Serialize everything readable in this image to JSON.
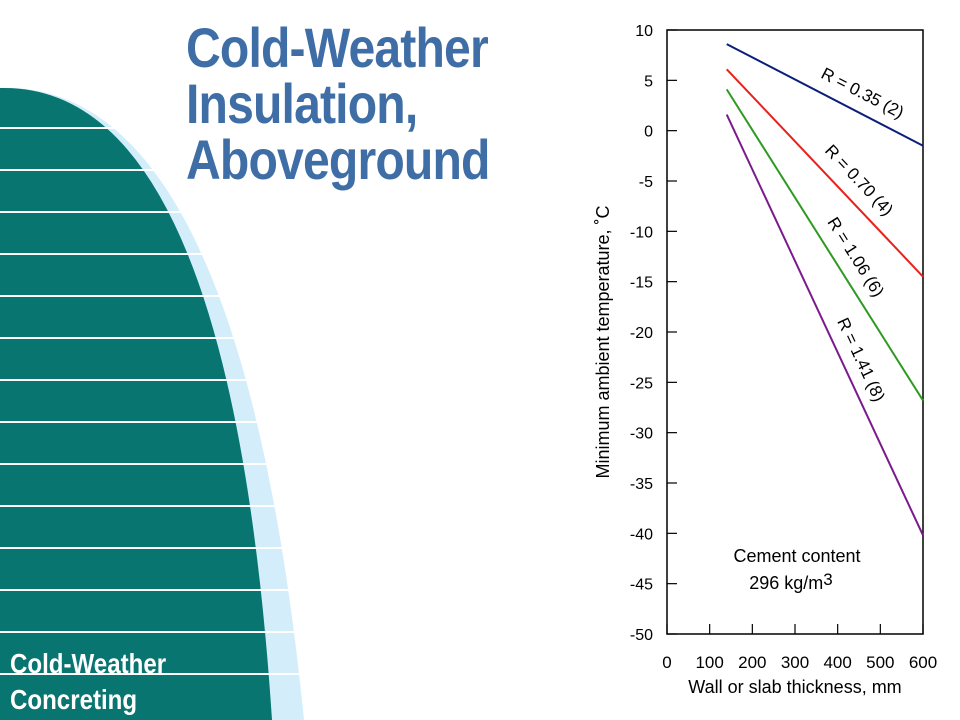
{
  "slide": {
    "title_lines": [
      "Cold-Weather",
      "Insulation,",
      "Aboveground"
    ],
    "footer_lines": [
      "Cold-Weather",
      "Concreting"
    ],
    "colors": {
      "title": "#3f6ea6",
      "dome": "#087570",
      "dome_light": "#d3eefa",
      "footer_text": "#ffffff"
    }
  },
  "chart_data": {
    "type": "line",
    "title": "",
    "xlabel": "Wall or slab thickness, mm",
    "ylabel": "Minimum ambient temperature, ˚C",
    "xlim": [
      0,
      600
    ],
    "ylim": [
      -50,
      10
    ],
    "xticks": [
      0,
      100,
      200,
      300,
      400,
      500,
      600
    ],
    "yticks": [
      10,
      5,
      0,
      -5,
      -10,
      -15,
      -20,
      -25,
      -30,
      -35,
      -40,
      -45,
      -50
    ],
    "grid": false,
    "legend": "none",
    "annotation": {
      "line1": "Cement content",
      "line2": "296 kg/m",
      "superscript": "3"
    },
    "series": [
      {
        "name": "R = 0.35 (2)",
        "color": "#0b1f7a",
        "x": [
          140,
          600
        ],
        "y": [
          8.6,
          -1.5
        ]
      },
      {
        "name": "R = 0.70 (4)",
        "color": "#e8211b",
        "x": [
          140,
          600
        ],
        "y": [
          6.1,
          -14.5
        ]
      },
      {
        "name": "R = 1.06 (6)",
        "color": "#2e9a22",
        "x": [
          140,
          600
        ],
        "y": [
          4.1,
          -26.8
        ]
      },
      {
        "name": "R = 1.41 (8)",
        "color": "#7b1a8c",
        "x": [
          140,
          600
        ],
        "y": [
          1.6,
          -40.2
        ]
      }
    ]
  }
}
